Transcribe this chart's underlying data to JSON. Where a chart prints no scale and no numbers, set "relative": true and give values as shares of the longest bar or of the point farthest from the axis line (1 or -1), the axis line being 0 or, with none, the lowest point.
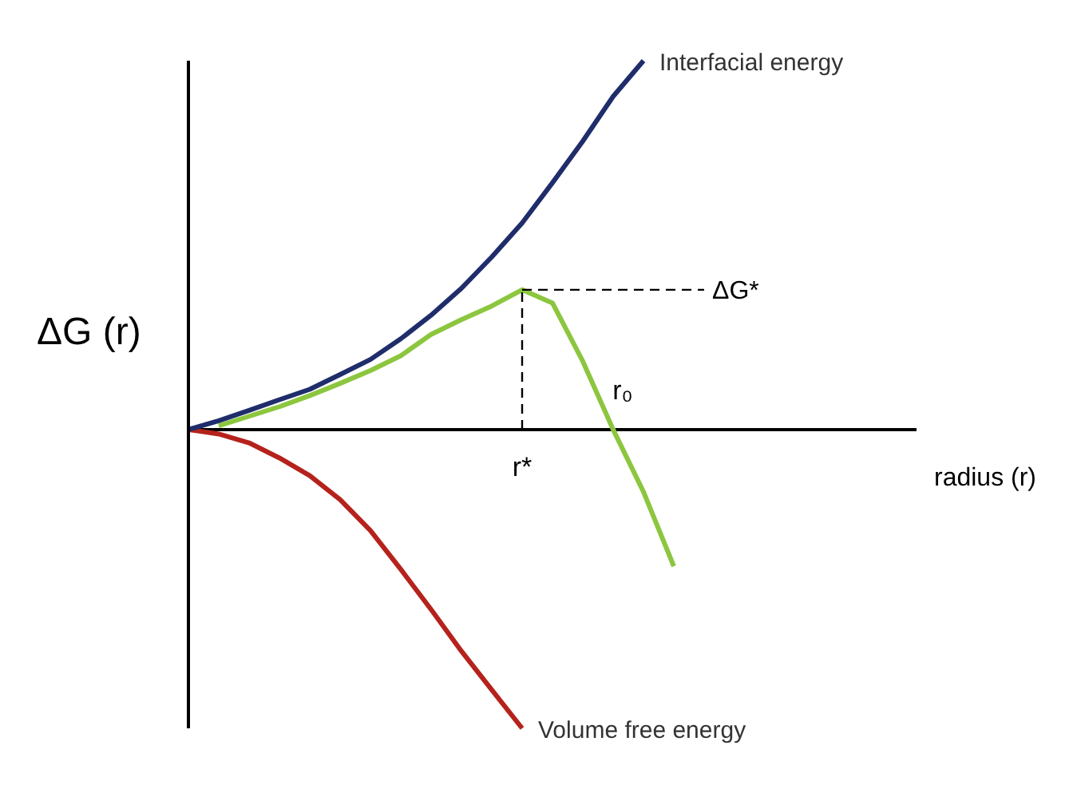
{
  "chart_data": {
    "type": "line",
    "relative": true,
    "xlabel": "radius (r)",
    "ylabel": "ΔG (r)",
    "grid": false,
    "tick_labels": false,
    "legend": false,
    "marker": "none",
    "line_style": "solid",
    "categories": [
      null,
      null,
      null,
      null,
      null,
      null,
      null,
      null,
      null,
      null,
      null,
      null,
      null,
      null,
      null,
      null,
      null,
      null,
      null,
      null,
      null,
      null,
      null,
      null,
      null
    ],
    "series": [
      {
        "name": "Interfacial energy",
        "color": "#1f2d6b",
        "values": [
          0,
          0.024,
          0.052,
          0.081,
          0.109,
          0.149,
          0.19,
          0.246,
          0.31,
          0.383,
          0.468,
          0.56,
          0.669,
          0.782,
          0.903,
          1,
          null,
          null,
          null,
          null,
          null,
          null,
          null,
          null,
          null
        ]
      },
      {
        "name": "Volume free energy",
        "color": "#b5221c",
        "values": [
          0,
          -0.012,
          -0.036,
          -0.077,
          -0.125,
          -0.19,
          -0.274,
          -0.379,
          -0.488,
          -0.601,
          -0.706,
          -0.81,
          null,
          null,
          null,
          null,
          null,
          null,
          null,
          null,
          null,
          null,
          null,
          null,
          null
        ]
      },
      {
        "color": "#8cc63f",
        "values": [
          null,
          0.01,
          0.036,
          0.062,
          0.092,
          0.125,
          0.16,
          0.2,
          0.258,
          0.298,
          0.335,
          0.379,
          0.343,
          0.185,
          0,
          -0.169,
          -0.371,
          null,
          null,
          null,
          null,
          null,
          null,
          null,
          null
        ]
      }
    ],
    "ref_lines": [
      {
        "axis": "y",
        "value": 0.379,
        "label": "ΔG*",
        "line_style": "dashed",
        "color": "#000000"
      }
    ],
    "annotations": [
      "r*",
      "r₀"
    ]
  }
}
